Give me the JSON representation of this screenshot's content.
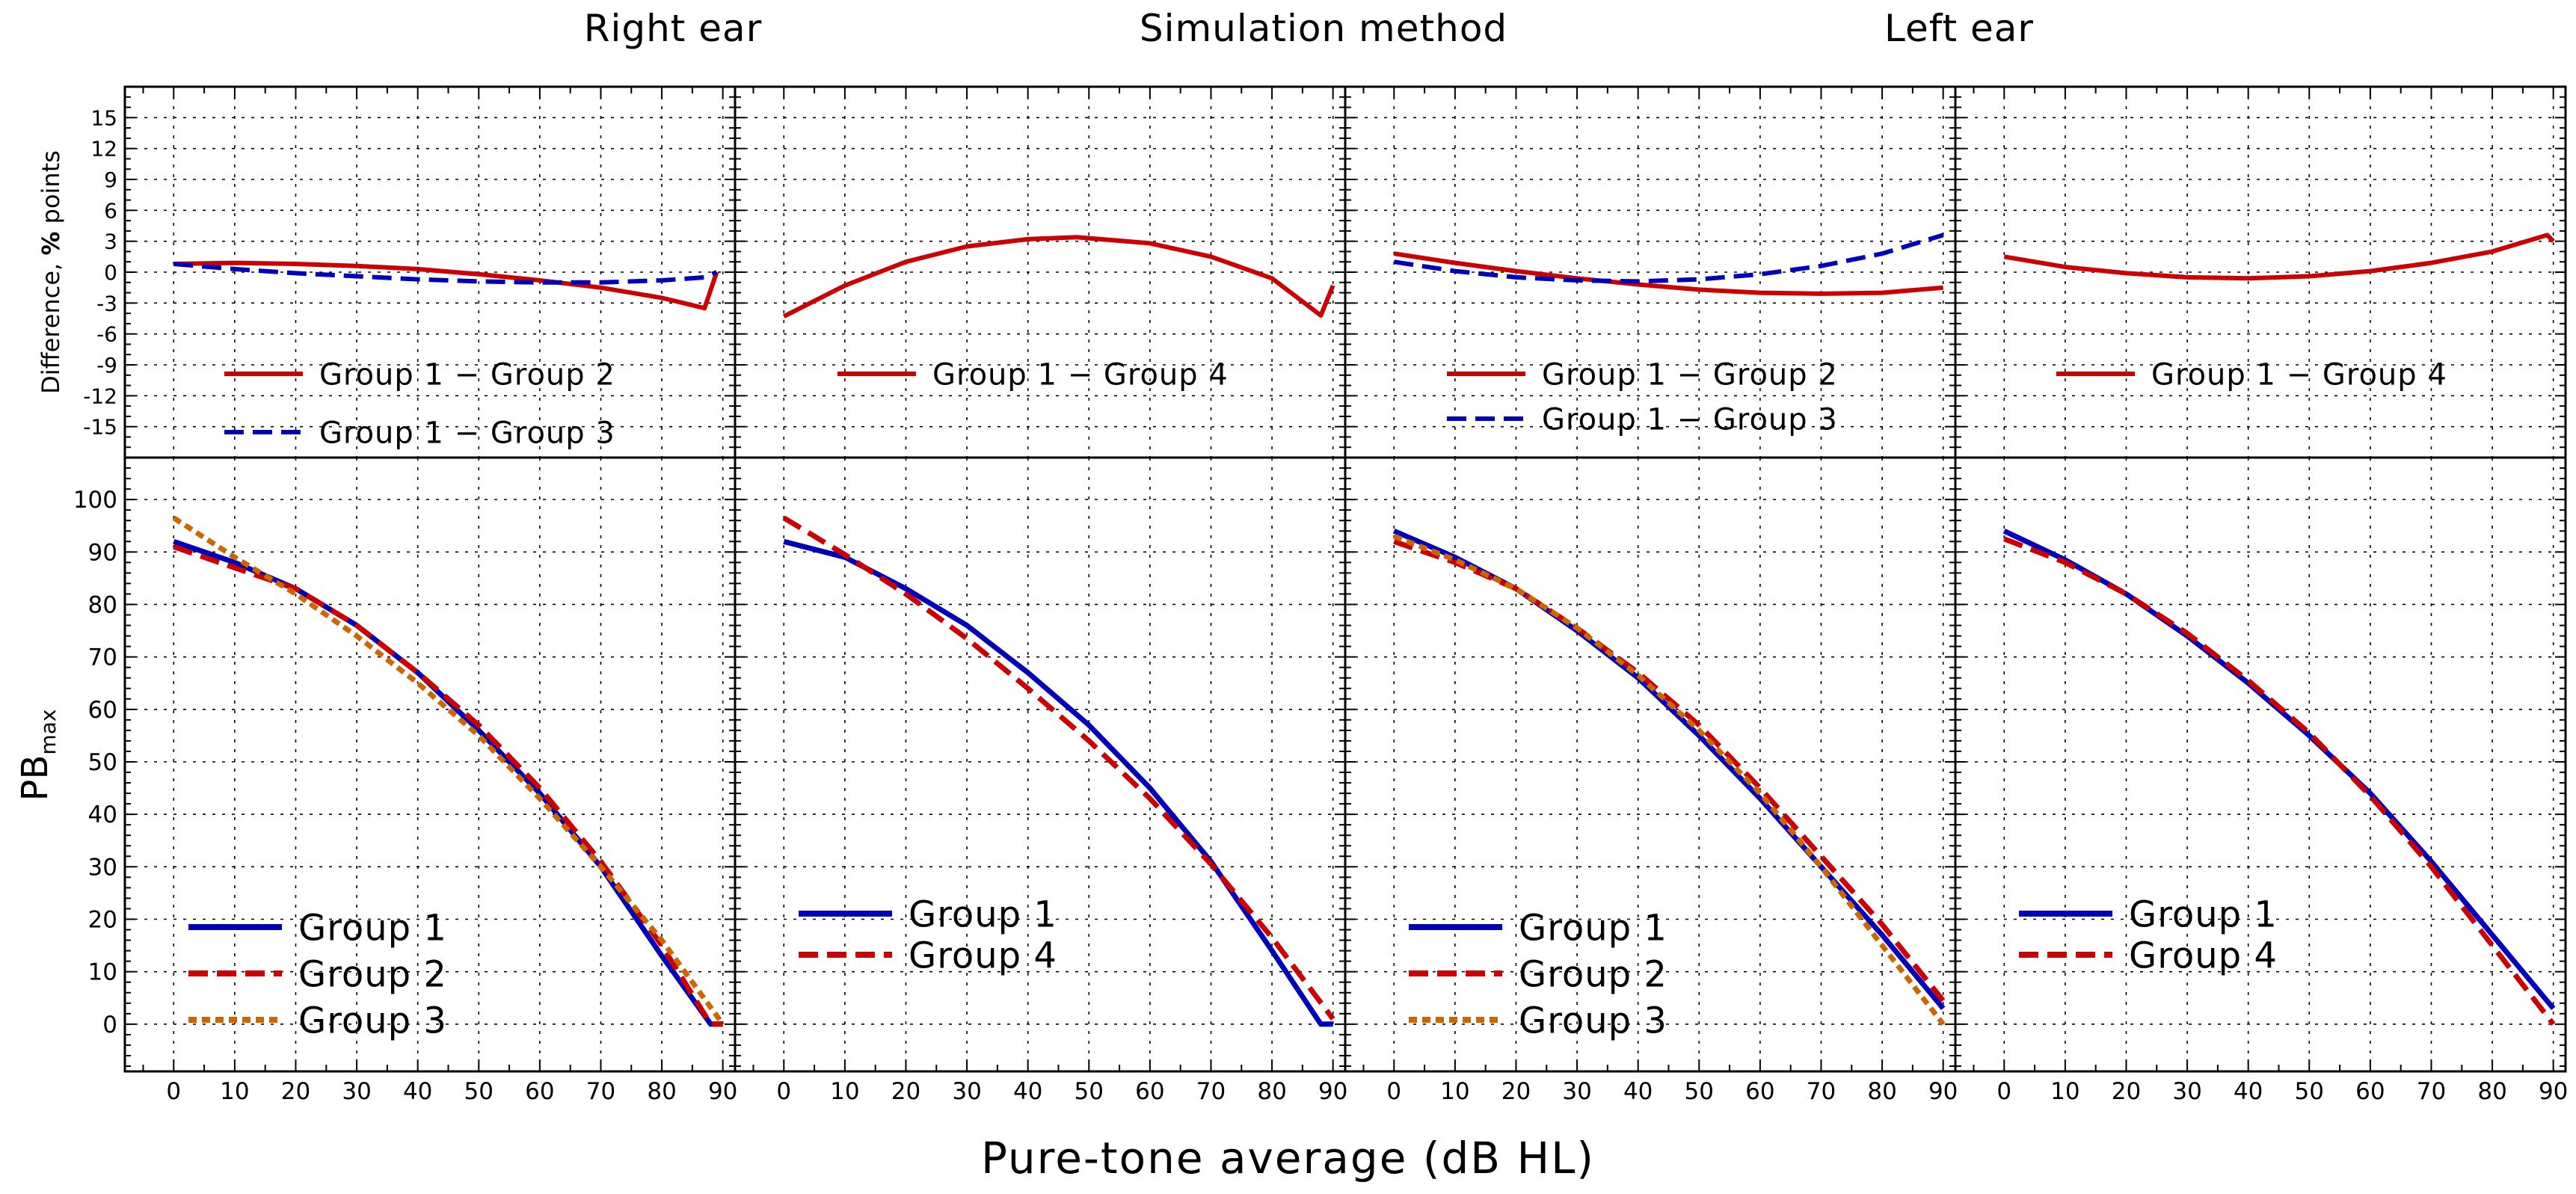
{
  "headers": {
    "right_ear": "Right ear",
    "simulation": "Simulation method",
    "left_ear": "Left ear"
  },
  "axes": {
    "top_ylabel_prefix": "Difference, ",
    "top_ylabel_bold": "%",
    "top_ylabel_suffix": " points",
    "bottom_ylabel": "PB",
    "bottom_ylabel_sub": "max",
    "xlabel": "Pure-tone average (dB HL)"
  },
  "chart_data": [
    {
      "type": "line",
      "panel": "top-1",
      "ylabel": "Difference, % points",
      "xlim": [
        -8,
        92
      ],
      "ylim": [
        -18,
        18
      ],
      "yticks": [
        -15,
        -12,
        -9,
        -6,
        -3,
        0,
        3,
        6,
        9,
        12,
        15
      ],
      "series": [
        {
          "name": "Group 1 − Group 2",
          "color": "#cc0000",
          "dash": "solid",
          "x": [
            0,
            10,
            20,
            30,
            40,
            50,
            60,
            70,
            80,
            87,
            89
          ],
          "y": [
            0.8,
            0.9,
            0.8,
            0.6,
            0.3,
            -0.2,
            -0.8,
            -1.5,
            -2.5,
            -3.5,
            0
          ]
        },
        {
          "name": "Group 1 − Group 3",
          "color": "#0000bb",
          "dash": "dash",
          "x": [
            0,
            10,
            20,
            30,
            40,
            50,
            60,
            70,
            80,
            87,
            89
          ],
          "y": [
            0.8,
            0.3,
            -0.1,
            -0.4,
            -0.7,
            -0.9,
            -1.0,
            -1.0,
            -0.8,
            -0.5,
            0
          ]
        }
      ]
    },
    {
      "type": "line",
      "panel": "top-2",
      "xlim": [
        -8,
        92
      ],
      "ylim": [
        -18,
        18
      ],
      "series": [
        {
          "name": "Group 1 − Group 4",
          "color": "#cc0000",
          "dash": "solid",
          "x": [
            0,
            10,
            20,
            30,
            40,
            48,
            60,
            70,
            80,
            88,
            90
          ],
          "y": [
            -4.3,
            -1.3,
            1.0,
            2.5,
            3.2,
            3.4,
            2.8,
            1.5,
            -0.6,
            -4.2,
            -1.3
          ]
        }
      ]
    },
    {
      "type": "line",
      "panel": "top-3",
      "xlim": [
        -8,
        92
      ],
      "ylim": [
        -18,
        18
      ],
      "series": [
        {
          "name": "Group 1 − Group 2",
          "color": "#cc0000",
          "dash": "solid",
          "x": [
            0,
            10,
            20,
            30,
            40,
            50,
            60,
            70,
            80,
            90
          ],
          "y": [
            1.8,
            0.9,
            0.1,
            -0.6,
            -1.2,
            -1.7,
            -2.0,
            -2.1,
            -2.0,
            -1.5
          ]
        },
        {
          "name": "Group 1 − Group 3",
          "color": "#0000bb",
          "dash": "dash",
          "x": [
            0,
            10,
            20,
            30,
            40,
            50,
            60,
            70,
            80,
            90
          ],
          "y": [
            1.0,
            0.1,
            -0.5,
            -0.8,
            -0.9,
            -0.7,
            -0.2,
            0.6,
            1.8,
            3.6
          ]
        }
      ]
    },
    {
      "type": "line",
      "panel": "top-4",
      "xlim": [
        -8,
        92
      ],
      "ylim": [
        -18,
        18
      ],
      "series": [
        {
          "name": "Group 1 − Group 4",
          "color": "#cc0000",
          "dash": "solid",
          "x": [
            0,
            10,
            20,
            30,
            40,
            50,
            60,
            70,
            80,
            89,
            90
          ],
          "y": [
            1.5,
            0.5,
            -0.1,
            -0.5,
            -0.6,
            -0.4,
            0.1,
            0.9,
            2.0,
            3.6,
            3.0
          ]
        }
      ]
    },
    {
      "type": "line",
      "panel": "bottom-1",
      "ylabel": "PBmax",
      "xlabel": "Pure-tone average (dB HL)",
      "xlim": [
        -8,
        92
      ],
      "ylim": [
        -9,
        108
      ],
      "xticks": [
        0,
        10,
        20,
        30,
        40,
        50,
        60,
        70,
        80,
        90
      ],
      "yticks": [
        0,
        10,
        20,
        30,
        40,
        50,
        60,
        70,
        80,
        90,
        100
      ],
      "series": [
        {
          "name": "Group 1",
          "color": "#0000bb",
          "dash": "solid",
          "x": [
            0,
            10,
            20,
            30,
            40,
            50,
            60,
            70,
            80,
            88,
            90
          ],
          "y": [
            92,
            88,
            83,
            76,
            67,
            56,
            44,
            30,
            13,
            0,
            0
          ]
        },
        {
          "name": "Group 2",
          "color": "#cc0000",
          "dash": "dash",
          "x": [
            0,
            10,
            20,
            30,
            40,
            50,
            60,
            70,
            80,
            88,
            90
          ],
          "y": [
            91,
            87,
            83,
            76,
            67,
            57,
            45,
            31,
            15,
            0,
            0
          ]
        },
        {
          "name": "Group 3",
          "color": "#cc6600",
          "dash": "dot",
          "x": [
            0,
            10,
            20,
            30,
            40,
            50,
            60,
            70,
            80,
            90
          ],
          "y": [
            96.5,
            89,
            82,
            74,
            65,
            55,
            43,
            30,
            16,
            0
          ]
        }
      ]
    },
    {
      "type": "line",
      "panel": "bottom-2",
      "xlim": [
        -8,
        92
      ],
      "ylim": [
        -9,
        108
      ],
      "series": [
        {
          "name": "Group 1",
          "color": "#0000bb",
          "dash": "solid",
          "x": [
            0,
            10,
            20,
            30,
            40,
            50,
            60,
            70,
            80,
            88,
            90
          ],
          "y": [
            92,
            89,
            83,
            76,
            67,
            57,
            45,
            31,
            14,
            0,
            0
          ]
        },
        {
          "name": "Group 4",
          "color": "#cc0000",
          "dash": "dash",
          "x": [
            0,
            10,
            20,
            30,
            40,
            50,
            60,
            70,
            80,
            90
          ],
          "y": [
            96.5,
            89.5,
            82,
            73.5,
            64,
            54,
            43,
            30.5,
            16.5,
            1
          ]
        }
      ]
    },
    {
      "type": "line",
      "panel": "bottom-3",
      "xlim": [
        -8,
        92
      ],
      "ylim": [
        -9,
        108
      ],
      "series": [
        {
          "name": "Group 1",
          "color": "#0000bb",
          "dash": "solid",
          "x": [
            0,
            10,
            20,
            30,
            40,
            50,
            60,
            70,
            80,
            90
          ],
          "y": [
            94,
            89,
            83,
            75,
            66,
            55,
            43,
            30,
            17,
            3
          ]
        },
        {
          "name": "Group 2",
          "color": "#cc0000",
          "dash": "dash",
          "x": [
            0,
            10,
            20,
            30,
            40,
            50,
            60,
            70,
            80,
            90
          ],
          "y": [
            92,
            88,
            83,
            75.5,
            67,
            57,
            45,
            32,
            19,
            4.5
          ]
        },
        {
          "name": "Group 3",
          "color": "#cc6600",
          "dash": "dot",
          "x": [
            0,
            10,
            20,
            30,
            40,
            50,
            60,
            70,
            80,
            90
          ],
          "y": [
            93,
            88.5,
            83,
            75.5,
            66.5,
            56,
            44,
            30,
            15,
            0
          ]
        }
      ]
    },
    {
      "type": "line",
      "panel": "bottom-4",
      "xlim": [
        -8,
        92
      ],
      "ylim": [
        -9,
        108
      ],
      "series": [
        {
          "name": "Group 1",
          "color": "#0000bb",
          "dash": "solid",
          "x": [
            0,
            10,
            20,
            30,
            40,
            50,
            60,
            70,
            80,
            90
          ],
          "y": [
            94,
            88.5,
            82,
            74,
            65,
            55,
            44,
            31,
            17,
            3
          ]
        },
        {
          "name": "Group 4",
          "color": "#cc0000",
          "dash": "dash",
          "x": [
            0,
            10,
            20,
            30,
            40,
            50,
            60,
            70,
            80,
            90
          ],
          "y": [
            92.5,
            88,
            82,
            74.5,
            65.5,
            55.5,
            43.5,
            30,
            15,
            0
          ]
        }
      ]
    }
  ]
}
